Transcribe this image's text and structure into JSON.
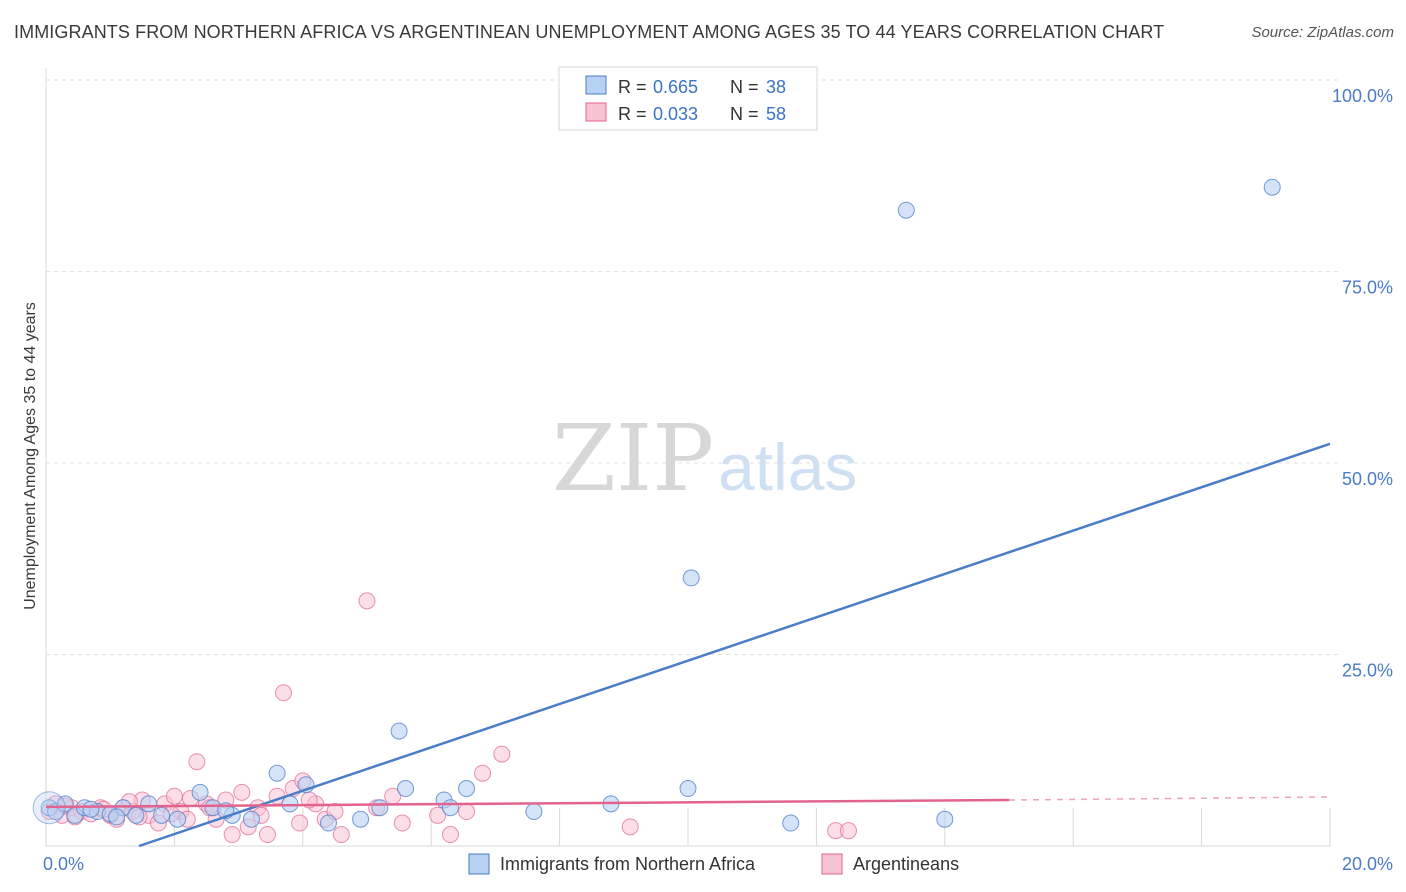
{
  "title": "IMMIGRANTS FROM NORTHERN AFRICA VS ARGENTINEAN UNEMPLOYMENT AMONG AGES 35 TO 44 YEARS CORRELATION CHART",
  "source": "Source: ZipAtlas.com",
  "watermark": {
    "zip": "ZIP",
    "atlas": "atlas"
  },
  "colors": {
    "blue": "#4a7cc7",
    "blue_fill": "#b7d1f3",
    "pink": "#e2648e",
    "pink_fill": "#f7c3d3",
    "grid": "#e2e2e2",
    "tick_text": "#4a7cc7"
  },
  "legend": {
    "rows": [
      {
        "r_label": "R = ",
        "r_value": "0.665",
        "n_label": "N = ",
        "n_value": "38"
      },
      {
        "r_label": "R = ",
        "r_value": "0.033",
        "n_label": "N = ",
        "n_value": "58"
      }
    ]
  },
  "chart_data": {
    "type": "scatter",
    "title": "IMMIGRANTS FROM NORTHERN AFRICA VS ARGENTINEAN UNEMPLOYMENT AMONG AGES 35 TO 44 YEARS CORRELATION CHART",
    "xlabel": "",
    "ylabel": "Unemployment Among Ages 35 to 44 years",
    "xlim": [
      0,
      20
    ],
    "ylim": [
      0,
      100
    ],
    "x_tick_labels": [
      "0.0%",
      "20.0%"
    ],
    "y_ticks": [
      25,
      50,
      75,
      100
    ],
    "y_tick_labels": [
      "25.0%",
      "50.0%",
      "75.0%",
      "100.0%"
    ],
    "legend_position": "top-center",
    "series": [
      {
        "name": "Immigrants from Northern Africa",
        "color": "#4a7cc7",
        "trend": {
          "x": [
            1.45,
            20
          ],
          "y": [
            0,
            52.5
          ]
        },
        "points": [
          {
            "x": 0.05,
            "y": 5.0
          },
          {
            "x": 0.15,
            "y": 4.5
          },
          {
            "x": 0.3,
            "y": 5.5
          },
          {
            "x": 0.45,
            "y": 4.0
          },
          {
            "x": 0.6,
            "y": 5.0
          },
          {
            "x": 0.8,
            "y": 4.5
          },
          {
            "x": 1.0,
            "y": 4.2
          },
          {
            "x": 1.2,
            "y": 5.0
          },
          {
            "x": 1.4,
            "y": 4.0
          },
          {
            "x": 1.6,
            "y": 5.5
          },
          {
            "x": 1.8,
            "y": 4.0
          },
          {
            "x": 2.05,
            "y": 3.5
          },
          {
            "x": 2.4,
            "y": 7.0
          },
          {
            "x": 2.6,
            "y": 5.0
          },
          {
            "x": 2.9,
            "y": 4.0
          },
          {
            "x": 3.2,
            "y": 3.5
          },
          {
            "x": 3.6,
            "y": 9.5
          },
          {
            "x": 3.8,
            "y": 5.5
          },
          {
            "x": 4.05,
            "y": 8.0
          },
          {
            "x": 4.4,
            "y": 3.0
          },
          {
            "x": 4.9,
            "y": 3.5
          },
          {
            "x": 5.2,
            "y": 5.0
          },
          {
            "x": 5.5,
            "y": 15.0
          },
          {
            "x": 5.6,
            "y": 7.5
          },
          {
            "x": 6.2,
            "y": 6.0
          },
          {
            "x": 6.3,
            "y": 5.0
          },
          {
            "x": 6.55,
            "y": 7.5
          },
          {
            "x": 7.6,
            "y": 4.5
          },
          {
            "x": 8.8,
            "y": 5.5
          },
          {
            "x": 10.05,
            "y": 35.0
          },
          {
            "x": 10.0,
            "y": 7.5
          },
          {
            "x": 11.6,
            "y": 3.0
          },
          {
            "x": 13.4,
            "y": 83.0
          },
          {
            "x": 14.0,
            "y": 3.5
          },
          {
            "x": 19.1,
            "y": 86.0
          },
          {
            "x": 0.7,
            "y": 4.8
          },
          {
            "x": 1.1,
            "y": 3.8
          },
          {
            "x": 2.8,
            "y": 4.6
          }
        ]
      },
      {
        "name": "Argentineans",
        "color": "#e2648e",
        "trend": {
          "x": [
            0,
            15
          ],
          "y": [
            5.1,
            6.0
          ]
        },
        "trend_dashed": {
          "x": [
            15,
            20
          ],
          "y": [
            6.0,
            6.4
          ]
        },
        "points": [
          {
            "x": 0.05,
            "y": 4.5
          },
          {
            "x": 0.15,
            "y": 5.5
          },
          {
            "x": 0.25,
            "y": 4.0
          },
          {
            "x": 0.4,
            "y": 5.0
          },
          {
            "x": 0.55,
            "y": 4.5
          },
          {
            "x": 0.7,
            "y": 4.2
          },
          {
            "x": 0.85,
            "y": 5.0
          },
          {
            "x": 1.0,
            "y": 4.0
          },
          {
            "x": 1.1,
            "y": 3.5
          },
          {
            "x": 1.2,
            "y": 5.0
          },
          {
            "x": 1.35,
            "y": 4.5
          },
          {
            "x": 1.5,
            "y": 6.0
          },
          {
            "x": 1.6,
            "y": 4.0
          },
          {
            "x": 1.75,
            "y": 3.0
          },
          {
            "x": 1.85,
            "y": 5.5
          },
          {
            "x": 2.0,
            "y": 6.5
          },
          {
            "x": 2.1,
            "y": 4.5
          },
          {
            "x": 2.2,
            "y": 3.5
          },
          {
            "x": 2.35,
            "y": 11.0
          },
          {
            "x": 2.5,
            "y": 5.5
          },
          {
            "x": 2.65,
            "y": 3.5
          },
          {
            "x": 2.8,
            "y": 6.0
          },
          {
            "x": 2.9,
            "y": 1.5
          },
          {
            "x": 3.05,
            "y": 7.0
          },
          {
            "x": 3.15,
            "y": 2.5
          },
          {
            "x": 3.3,
            "y": 5.0
          },
          {
            "x": 3.45,
            "y": 1.5
          },
          {
            "x": 3.6,
            "y": 6.5
          },
          {
            "x": 3.7,
            "y": 20.0
          },
          {
            "x": 3.85,
            "y": 7.5
          },
          {
            "x": 3.95,
            "y": 3.0
          },
          {
            "x": 4.0,
            "y": 8.5
          },
          {
            "x": 4.2,
            "y": 5.5
          },
          {
            "x": 4.35,
            "y": 3.5
          },
          {
            "x": 4.5,
            "y": 4.5
          },
          {
            "x": 4.6,
            "y": 1.5
          },
          {
            "x": 5.0,
            "y": 32.0
          },
          {
            "x": 5.15,
            "y": 5.0
          },
          {
            "x": 5.4,
            "y": 6.5
          },
          {
            "x": 5.55,
            "y": 3.0
          },
          {
            "x": 6.1,
            "y": 4.0
          },
          {
            "x": 6.3,
            "y": 1.5
          },
          {
            "x": 6.55,
            "y": 4.5
          },
          {
            "x": 6.8,
            "y": 9.5
          },
          {
            "x": 7.1,
            "y": 12.0
          },
          {
            "x": 9.1,
            "y": 2.5
          },
          {
            "x": 12.3,
            "y": 2.0
          },
          {
            "x": 12.5,
            "y": 2.0
          },
          {
            "x": 0.3,
            "y": 5.2
          },
          {
            "x": 0.9,
            "y": 4.8
          },
          {
            "x": 1.3,
            "y": 5.8
          },
          {
            "x": 1.95,
            "y": 4.2
          },
          {
            "x": 2.55,
            "y": 5.0
          },
          {
            "x": 3.35,
            "y": 4.0
          },
          {
            "x": 0.45,
            "y": 3.8
          },
          {
            "x": 1.45,
            "y": 3.8
          },
          {
            "x": 2.25,
            "y": 6.2
          },
          {
            "x": 4.1,
            "y": 6.0
          }
        ]
      }
    ]
  }
}
